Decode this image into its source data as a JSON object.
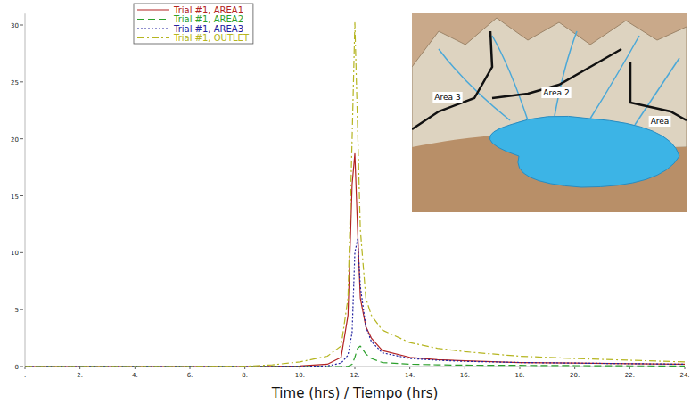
{
  "chart_data": {
    "type": "line",
    "xlabel": "Time (hrs) / Tiempo (hrs)",
    "annotations": [
      "Area 3",
      "Area 2",
      "Area"
    ],
    "x": [
      0,
      2,
      4,
      6,
      8,
      9,
      10,
      11,
      11.5,
      11.75,
      11.9,
      12,
      12.1,
      12.2,
      12.4,
      12.6,
      13,
      14,
      15,
      16,
      18,
      20,
      22,
      24
    ],
    "series": [
      {
        "name": "Trial #1, AREA1",
        "color": "#b22222",
        "line_style": "solid",
        "values": [
          0,
          0,
          0,
          0,
          0,
          0.02,
          0.05,
          0.2,
          0.8,
          4.5,
          16,
          18.7,
          12,
          6,
          3.5,
          2.5,
          1.4,
          0.8,
          0.6,
          0.5,
          0.35,
          0.3,
          0.25,
          0.2
        ]
      },
      {
        "name": "Trial #1, AREA2",
        "color": "#2ca02c",
        "line_style": "dashed",
        "values": [
          0,
          0,
          0,
          0,
          0,
          0,
          0,
          0,
          0,
          0.02,
          0.2,
          0.8,
          1.6,
          1.8,
          1.1,
          0.7,
          0.35,
          0.2,
          0.15,
          0.12,
          0.1,
          0.08,
          0.06,
          0.05
        ]
      },
      {
        "name": "Trial #1, AREA3",
        "color": "#2222a0",
        "line_style": "dotted",
        "values": [
          0,
          0,
          0,
          0,
          0,
          0,
          0.01,
          0.05,
          0.3,
          1,
          3,
          10,
          11.2,
          7,
          3.5,
          2.2,
          1.2,
          0.7,
          0.55,
          0.45,
          0.35,
          0.3,
          0.25,
          0.2
        ]
      },
      {
        "name": "Trial #1, OUTLET",
        "color": "#b5b520",
        "line_style": "dashdot",
        "values": [
          0,
          0,
          0,
          0,
          0.02,
          0.15,
          0.4,
          0.9,
          1.8,
          6,
          20,
          30.2,
          21,
          12,
          6,
          4.5,
          3.2,
          2.1,
          1.6,
          1.3,
          0.9,
          0.7,
          0.55,
          0.4
        ]
      }
    ],
    "xlim": [
      0,
      24
    ],
    "xticks": [
      {
        "value": 0,
        "label": "."
      },
      {
        "value": 2,
        "label": "2."
      },
      {
        "value": 4,
        "label": "4."
      },
      {
        "value": 6,
        "label": "6."
      },
      {
        "value": 8,
        "label": "8."
      },
      {
        "value": 10,
        "label": "10."
      },
      {
        "value": 12,
        "label": "12."
      },
      {
        "value": 14,
        "label": "14."
      },
      {
        "value": 16,
        "label": "16."
      },
      {
        "value": 18,
        "label": "18."
      },
      {
        "value": 20,
        "label": "20."
      },
      {
        "value": 22,
        "label": "22."
      },
      {
        "value": 24,
        "label": "24."
      }
    ],
    "ylim": [
      0,
      31
    ],
    "yticks": [
      0,
      5,
      10,
      15,
      20,
      25,
      30
    ],
    "legend": "top-left",
    "grid": false
  }
}
